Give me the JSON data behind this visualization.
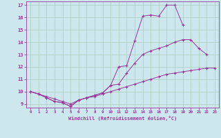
{
  "xlabel": "Windchill (Refroidissement éolien,°C)",
  "bg_color": "#cce8ee",
  "line_color": "#993399",
  "grid_color": "#aaccbb",
  "xlim": [
    -0.5,
    23.5
  ],
  "ylim": [
    8.7,
    17.3
  ],
  "xticks": [
    0,
    1,
    2,
    3,
    4,
    5,
    6,
    7,
    8,
    9,
    10,
    11,
    12,
    13,
    14,
    15,
    16,
    17,
    18,
    19,
    20,
    21,
    22,
    23
  ],
  "yticks": [
    9,
    10,
    11,
    12,
    13,
    14,
    15,
    16,
    17
  ],
  "line1_x": [
    0,
    1,
    2,
    3,
    4,
    5,
    6,
    7,
    8,
    9,
    10,
    11,
    12,
    13,
    14,
    15,
    16,
    17,
    18,
    19
  ],
  "line1_y": [
    10.0,
    9.8,
    9.5,
    9.2,
    9.1,
    8.8,
    9.3,
    9.5,
    9.7,
    9.9,
    10.5,
    12.0,
    12.1,
    14.1,
    16.1,
    16.2,
    16.1,
    17.0,
    17.0,
    15.4
  ],
  "line2_x": [
    0,
    1,
    2,
    3,
    4,
    5,
    6,
    7,
    8,
    9,
    10,
    11,
    12,
    13,
    14,
    15,
    16,
    17,
    18,
    19,
    20,
    21,
    22
  ],
  "line2_y": [
    10.0,
    9.8,
    9.5,
    9.2,
    9.1,
    8.8,
    9.3,
    9.5,
    9.7,
    9.9,
    10.5,
    10.6,
    11.5,
    12.3,
    13.0,
    13.3,
    13.5,
    13.7,
    14.0,
    14.2,
    14.2,
    13.5,
    13.0
  ],
  "line3_x": [
    0,
    1,
    2,
    3,
    4,
    5,
    6,
    7,
    8,
    9,
    10,
    11,
    12,
    13,
    14,
    15,
    16,
    17,
    18,
    19,
    20,
    21,
    22,
    23
  ],
  "line3_y": [
    10.0,
    9.8,
    9.6,
    9.4,
    9.2,
    9.0,
    9.3,
    9.5,
    9.6,
    9.8,
    10.0,
    10.2,
    10.4,
    10.6,
    10.8,
    11.0,
    11.2,
    11.4,
    11.5,
    11.6,
    11.7,
    11.8,
    11.9,
    11.9
  ]
}
